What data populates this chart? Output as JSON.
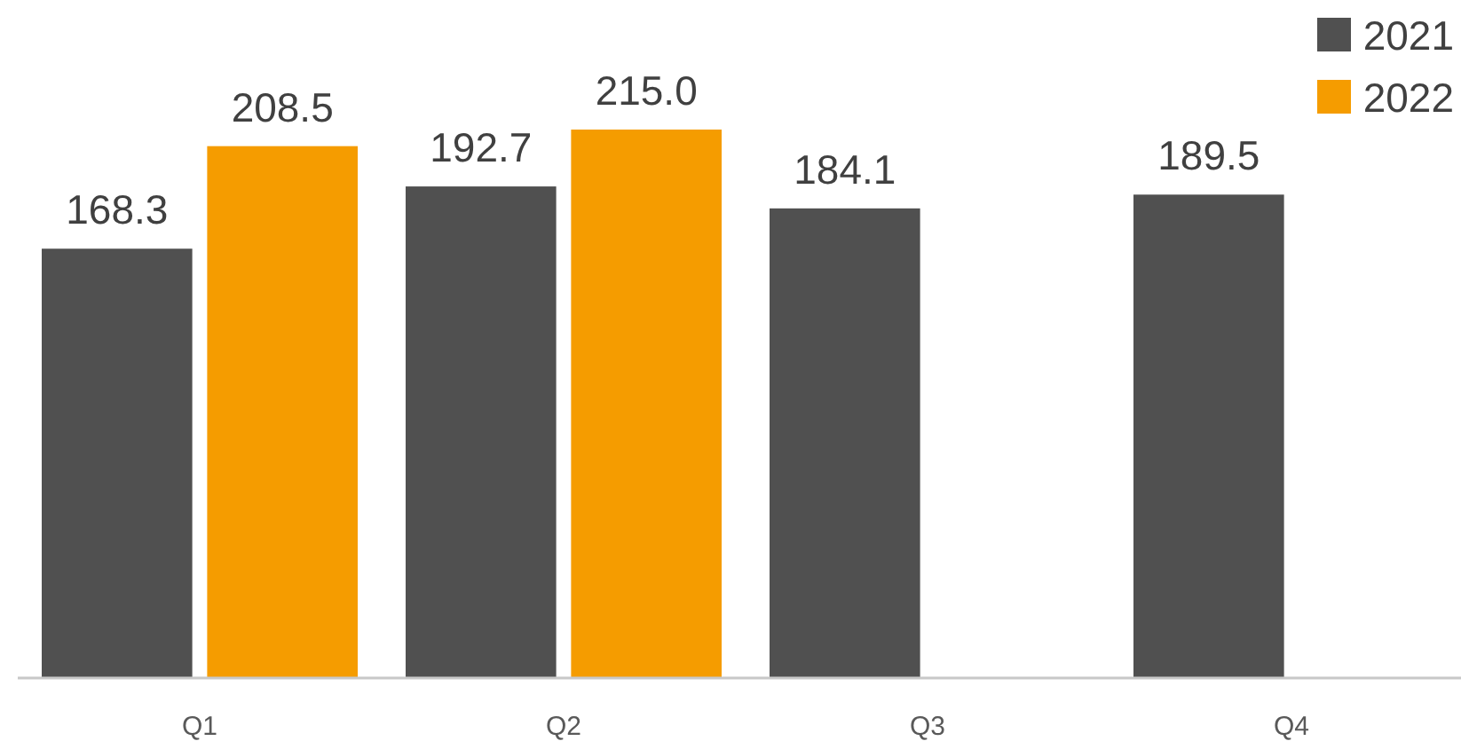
{
  "chart_data": {
    "type": "bar",
    "categories": [
      "Q1",
      "Q2",
      "Q3",
      "Q4"
    ],
    "series": [
      {
        "name": "2021",
        "color": "#505050",
        "values": [
          168.3,
          192.7,
          184.1,
          189.5
        ],
        "value_labels": [
          "168.3",
          "192.7",
          "184.1",
          "189.5"
        ]
      },
      {
        "name": "2022",
        "color": "#f59c00",
        "values": [
          208.5,
          215.0,
          null,
          null
        ],
        "value_labels": [
          "208.5",
          "215.0",
          null,
          null
        ]
      }
    ],
    "legend": "top right"
  }
}
